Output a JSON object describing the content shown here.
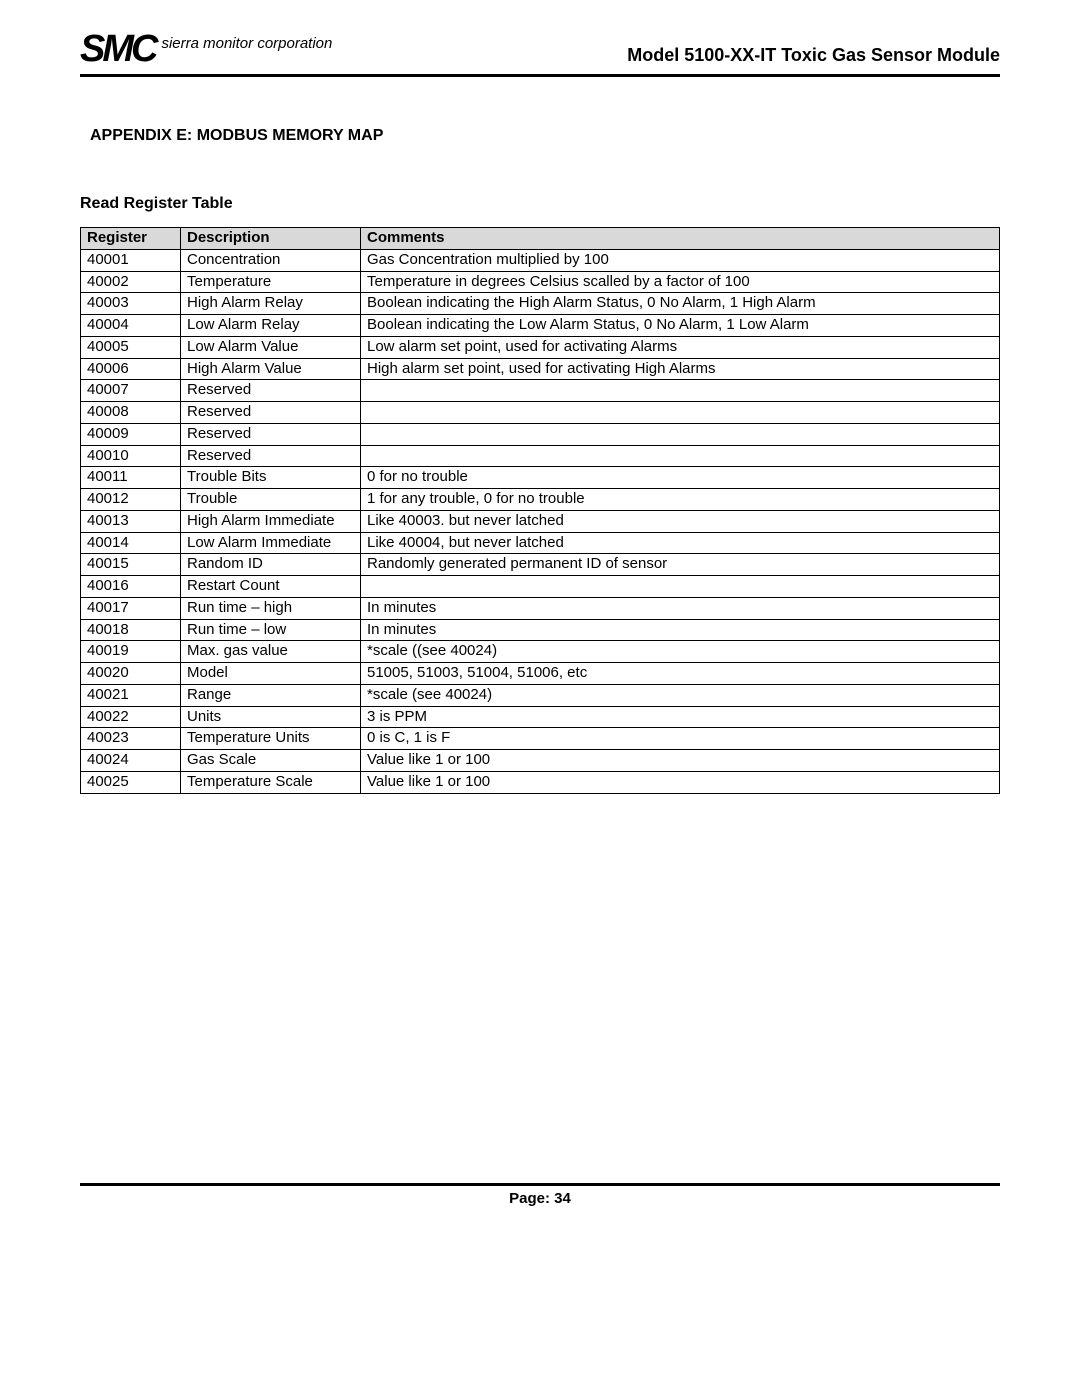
{
  "header": {
    "logo_text": "SMC",
    "logo_subtext": "sierra monitor corporation",
    "title": "Model 5100-XX-IT Toxic Gas Sensor Module"
  },
  "section_title": "APPENDIX E: MODBUS MEMORY MAP",
  "table_title": "Read Register Table",
  "table": {
    "columns": [
      "Register",
      "Description",
      "Comments"
    ],
    "header_bg": "#d9d9d9",
    "border_color": "#000000",
    "rows": [
      [
        "40001",
        "Concentration",
        "Gas Concentration multiplied by 100"
      ],
      [
        "40002",
        "Temperature",
        "Temperature in degrees Celsius scalled by a factor of 100"
      ],
      [
        "40003",
        "High Alarm Relay",
        "Boolean indicating the High Alarm Status, 0 No Alarm, 1 High Alarm"
      ],
      [
        "40004",
        "Low Alarm Relay",
        "Boolean indicating the Low Alarm Status, 0 No Alarm, 1 Low Alarm"
      ],
      [
        "40005",
        "Low Alarm Value",
        "Low alarm set point, used for activating Alarms"
      ],
      [
        "40006",
        "High Alarm Value",
        "High alarm set point, used for activating High Alarms"
      ],
      [
        "40007",
        "Reserved",
        ""
      ],
      [
        "40008",
        "Reserved",
        ""
      ],
      [
        "40009",
        "Reserved",
        ""
      ],
      [
        "40010",
        "Reserved",
        ""
      ],
      [
        "40011",
        "Trouble Bits",
        "0 for no trouble"
      ],
      [
        "40012",
        "Trouble",
        "1 for any trouble, 0 for no trouble"
      ],
      [
        "40013",
        "High Alarm Immediate",
        "Like 40003. but never latched"
      ],
      [
        "40014",
        "Low Alarm Immediate",
        "Like 40004, but never latched"
      ],
      [
        "40015",
        "Random ID",
        "Randomly generated permanent ID of sensor"
      ],
      [
        "40016",
        "Restart Count",
        ""
      ],
      [
        "40017",
        "Run time – high",
        "In minutes"
      ],
      [
        "40018",
        "Run time – low",
        "In minutes"
      ],
      [
        "40019",
        "Max. gas value",
        "*scale ((see 40024)"
      ],
      [
        "40020",
        "Model",
        "51005, 51003, 51004, 51006, etc"
      ],
      [
        "40021",
        "Range",
        "*scale (see 40024)"
      ],
      [
        "40022",
        "Units",
        "3 is PPM"
      ],
      [
        "40023",
        "Temperature Units",
        "0 is C, 1 is F"
      ],
      [
        "40024",
        "Gas Scale",
        "Value like 1 or 100"
      ],
      [
        "40025",
        "Temperature Scale",
        "Value like 1 or 100"
      ]
    ]
  },
  "footer": {
    "page_label": "Page:  34"
  }
}
